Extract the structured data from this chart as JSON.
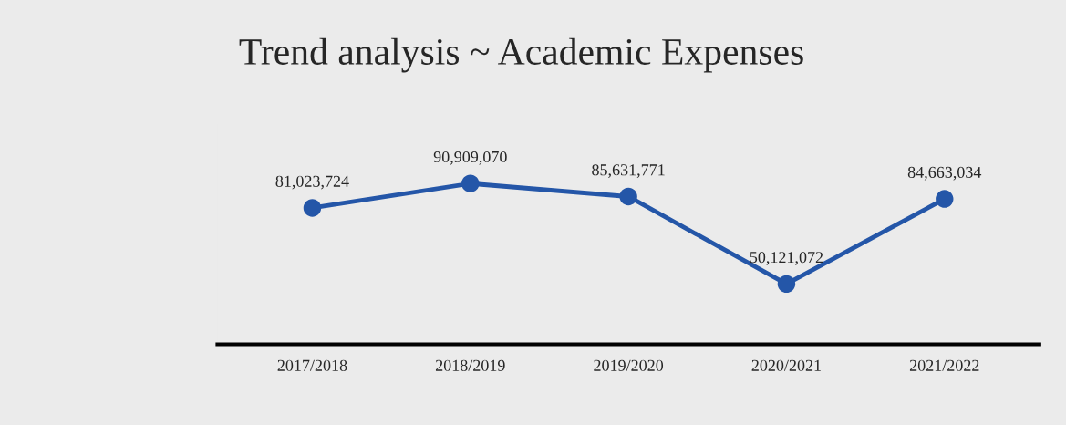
{
  "chart_data": {
    "type": "line",
    "title": "Trend analysis ~ Academic Expenses",
    "categories": [
      "2017/2018",
      "2018/2019",
      "2019/2020",
      "2020/2021",
      "2021/2022"
    ],
    "series": [
      {
        "color": "#2456a8",
        "values": [
          81023724,
          90909070,
          85631771,
          50121072,
          84663034
        ],
        "value_labels": [
          "81,023,724",
          "90,909,070",
          "85,631,771",
          "50,121,072",
          "84,663,034"
        ]
      }
    ],
    "marker": "circle",
    "line_style": "solid",
    "tick_labels": "x"
  }
}
